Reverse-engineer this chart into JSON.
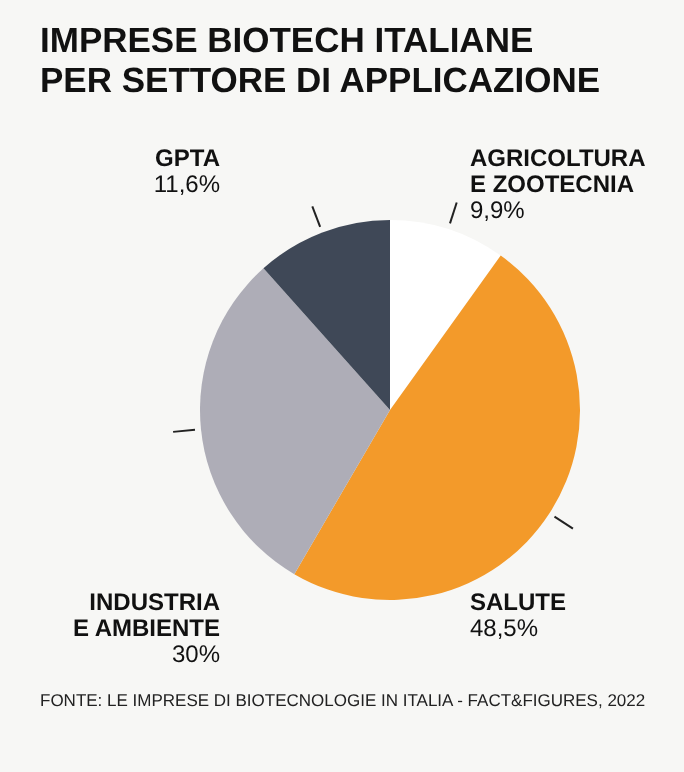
{
  "chart_data": {
    "type": "pie",
    "title": "IMPRESE BIOTECH ITALIANE\nPER SETTORE DI APPLICAZIONE",
    "categories": [
      "AGRICOLTURA\nE ZOOTECNIA",
      "SALUTE",
      "INDUSTRIA\nE AMBIENTE",
      "GPTA"
    ],
    "values": [
      9.9,
      48.5,
      30,
      11.6
    ],
    "value_labels": [
      "9,9%",
      "48,5%",
      "30%",
      "11,6%"
    ],
    "colors": [
      "#ffffff",
      "#f39a2a",
      "#aeadb7",
      "#3f4857"
    ],
    "annotations": [
      "FONTE: LE IMPRESE DI BIOTECNOLOGIE IN ITALIA - FACT&FIGURES, 2022"
    ]
  }
}
